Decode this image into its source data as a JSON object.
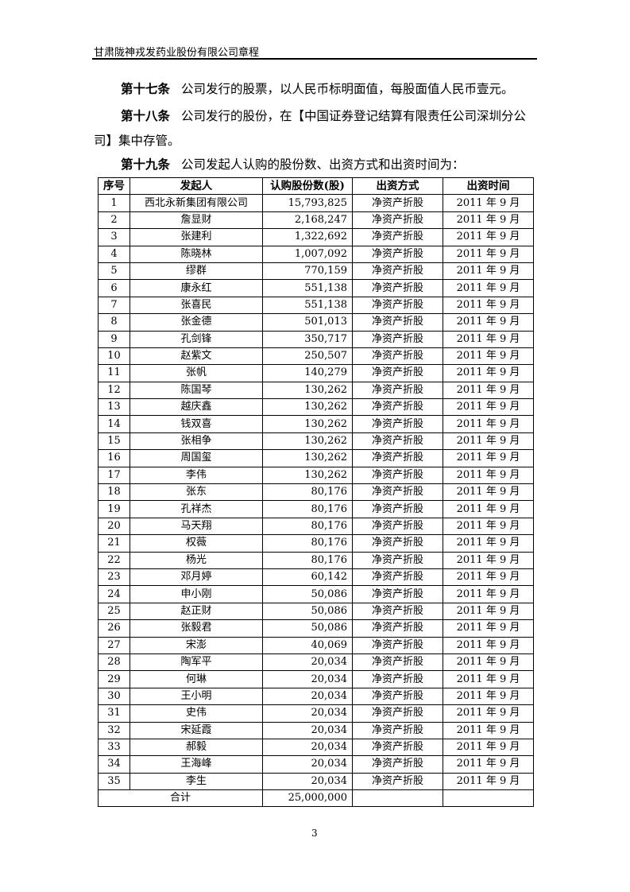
{
  "header": {
    "title": "甘肃陇神戎发药业股份有限公司章程"
  },
  "articles": [
    {
      "label": "第十七条",
      "text": "公司发行的股票，以人民币标明面值，每股面值人民币壹元。"
    },
    {
      "label": "第十八条",
      "text": "公司发行的股份，在【中国证券登记结算有限责任公司深圳分公",
      "cont": "司】集中存管。"
    },
    {
      "label": "第十九条",
      "text": "公司发起人认购的股份数、出资方式和出资时间为："
    }
  ],
  "table": {
    "columns": [
      "序号",
      "发起人",
      "认购股份数(股)",
      "出资方式",
      "出资时间"
    ],
    "rows": [
      [
        "1",
        "西北永新集团有限公司",
        "15,793,825",
        "净资产折股",
        "2011 年 9 月"
      ],
      [
        "2",
        "詹显财",
        "2,168,247",
        "净资产折股",
        "2011 年 9 月"
      ],
      [
        "3",
        "张建利",
        "1,322,692",
        "净资产折股",
        "2011 年 9 月"
      ],
      [
        "4",
        "陈晓林",
        "1,007,092",
        "净资产折股",
        "2011 年 9 月"
      ],
      [
        "5",
        "缪群",
        "770,159",
        "净资产折股",
        "2011 年 9 月"
      ],
      [
        "6",
        "康永红",
        "551,138",
        "净资产折股",
        "2011 年 9 月"
      ],
      [
        "7",
        "张喜民",
        "551,138",
        "净资产折股",
        "2011 年 9 月"
      ],
      [
        "8",
        "张金德",
        "501,013",
        "净资产折股",
        "2011 年 9 月"
      ],
      [
        "9",
        "孔剑锋",
        "350,717",
        "净资产折股",
        "2011 年 9 月"
      ],
      [
        "10",
        "赵紫文",
        "250,507",
        "净资产折股",
        "2011 年 9 月"
      ],
      [
        "11",
        "张帆",
        "140,279",
        "净资产折股",
        "2011 年 9 月"
      ],
      [
        "12",
        "陈国琴",
        "130,262",
        "净资产折股",
        "2011 年 9 月"
      ],
      [
        "13",
        "越庆鑫",
        "130,262",
        "净资产折股",
        "2011 年 9 月"
      ],
      [
        "14",
        "钱双喜",
        "130,262",
        "净资产折股",
        "2011 年 9 月"
      ],
      [
        "15",
        "张相争",
        "130,262",
        "净资产折股",
        "2011 年 9 月"
      ],
      [
        "16",
        "周国玺",
        "130,262",
        "净资产折股",
        "2011 年 9 月"
      ],
      [
        "17",
        "李伟",
        "130,262",
        "净资产折股",
        "2011 年 9 月"
      ],
      [
        "18",
        "张东",
        "80,176",
        "净资产折股",
        "2011 年 9 月"
      ],
      [
        "19",
        "孔祥杰",
        "80,176",
        "净资产折股",
        "2011 年 9 月"
      ],
      [
        "20",
        "马天翔",
        "80,176",
        "净资产折股",
        "2011 年 9 月"
      ],
      [
        "21",
        "权薇",
        "80,176",
        "净资产折股",
        "2011 年 9 月"
      ],
      [
        "22",
        "杨光",
        "80,176",
        "净资产折股",
        "2011 年 9 月"
      ],
      [
        "23",
        "邓月婷",
        "60,142",
        "净资产折股",
        "2011 年 9 月"
      ],
      [
        "24",
        "申小刚",
        "50,086",
        "净资产折股",
        "2011 年 9 月"
      ],
      [
        "25",
        "赵正财",
        "50,086",
        "净资产折股",
        "2011 年 9 月"
      ],
      [
        "26",
        "张毅君",
        "50,086",
        "净资产折股",
        "2011 年 9 月"
      ],
      [
        "27",
        "宋澎",
        "40,069",
        "净资产折股",
        "2011 年 9 月"
      ],
      [
        "28",
        "陶军平",
        "20,034",
        "净资产折股",
        "2011 年 9 月"
      ],
      [
        "29",
        "何琳",
        "20,034",
        "净资产折股",
        "2011 年 9 月"
      ],
      [
        "30",
        "王小明",
        "20,034",
        "净资产折股",
        "2011 年 9 月"
      ],
      [
        "31",
        "史伟",
        "20,034",
        "净资产折股",
        "2011 年 9 月"
      ],
      [
        "32",
        "宋延霞",
        "20,034",
        "净资产折股",
        "2011 年 9 月"
      ],
      [
        "33",
        "郝毅",
        "20,034",
        "净资产折股",
        "2011 年 9 月"
      ],
      [
        "34",
        "王海峰",
        "20,034",
        "净资产折股",
        "2011 年 9 月"
      ],
      [
        "35",
        "李生",
        "20,034",
        "净资产折股",
        "2011 年 9 月"
      ]
    ],
    "total": {
      "label": "合计",
      "shares": "25,000,000"
    }
  },
  "page_number": "3"
}
